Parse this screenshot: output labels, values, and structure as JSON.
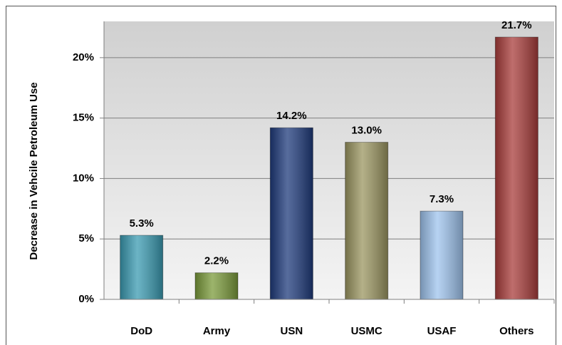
{
  "chart_data": {
    "type": "bar",
    "ylabel": "Decrease in Vehcile Petroleum Use",
    "categories": [
      "DoD",
      "Army",
      "USN",
      "USMC",
      "USAF",
      "Others"
    ],
    "values": [
      5.3,
      2.2,
      14.2,
      13.0,
      7.3,
      21.7
    ],
    "value_labels": [
      "5.3%",
      "2.2%",
      "14.2%",
      "13.0%",
      "7.3%",
      "21.7%"
    ],
    "colors": [
      "#3b9bb2",
      "#7b9b3b",
      "#1f3b7c",
      "#9b9661",
      "#9fc4ee",
      "#a93d3b"
    ],
    "ylim": [
      0,
      23
    ],
    "yticks": [
      {
        "value": 0,
        "label": "0%"
      },
      {
        "value": 5,
        "label": "5%"
      },
      {
        "value": 10,
        "label": "10%"
      },
      {
        "value": 15,
        "label": "15%"
      },
      {
        "value": 20,
        "label": "20%"
      }
    ],
    "grid": true
  }
}
